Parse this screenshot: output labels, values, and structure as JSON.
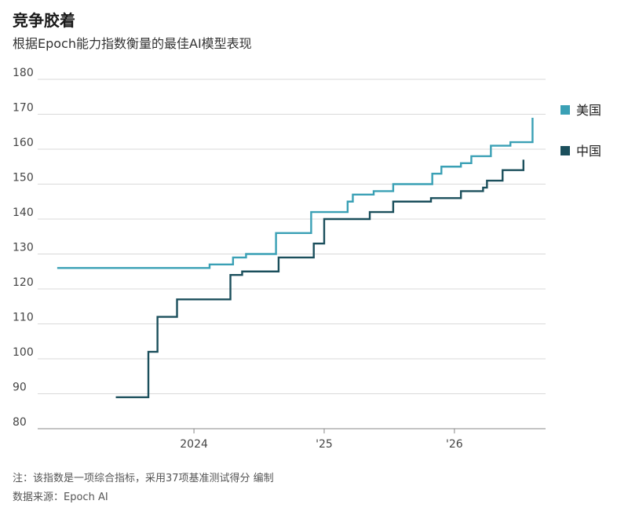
{
  "header": {
    "title": "竞争胶着",
    "subtitle": "根据Epoch能力指数衡量的最佳AI模型表现"
  },
  "footer": {
    "note": "注：该指数是一项综合指标，采用37项基准测试得分 编制",
    "source": "数据来源：Epoch AI"
  },
  "colors": {
    "us": "#3aa0b5",
    "china": "#1b4f5c",
    "grid": "#d9d9d9",
    "axis": "#888888",
    "text": "#444444"
  },
  "chart_data": {
    "type": "line",
    "step": true,
    "title": "竞争胶着",
    "subtitle": "根据Epoch能力指数衡量的最佳AI模型表现",
    "xlabel": "",
    "ylabel": "",
    "ylim": [
      80,
      180
    ],
    "yticks": [
      80,
      90,
      100,
      110,
      120,
      130,
      140,
      150,
      160,
      170,
      180
    ],
    "xticks": [
      {
        "value": 2024.0,
        "label": "2024"
      },
      {
        "value": 2025.0,
        "label": "'25"
      },
      {
        "value": 2026.0,
        "label": "'26"
      }
    ],
    "xlim": [
      2022.8,
      2026.7
    ],
    "grid": true,
    "legend_position": "right",
    "series": [
      {
        "name": "美国",
        "color_key": "us",
        "points": [
          [
            2022.95,
            126
          ],
          [
            2024.12,
            127
          ],
          [
            2024.3,
            129
          ],
          [
            2024.4,
            130
          ],
          [
            2024.63,
            136
          ],
          [
            2024.9,
            142
          ],
          [
            2025.18,
            145
          ],
          [
            2025.22,
            147
          ],
          [
            2025.38,
            148
          ],
          [
            2025.53,
            150
          ],
          [
            2025.83,
            153
          ],
          [
            2025.9,
            155
          ],
          [
            2026.05,
            156
          ],
          [
            2026.13,
            158
          ],
          [
            2026.28,
            161
          ],
          [
            2026.43,
            162
          ],
          [
            2026.6,
            169
          ]
        ]
      },
      {
        "name": "中国",
        "color_key": "china",
        "points": [
          [
            2023.4,
            89
          ],
          [
            2023.65,
            102
          ],
          [
            2023.72,
            112
          ],
          [
            2023.87,
            117
          ],
          [
            2024.28,
            124
          ],
          [
            2024.37,
            125
          ],
          [
            2024.65,
            129
          ],
          [
            2024.92,
            133
          ],
          [
            2025.0,
            140
          ],
          [
            2025.35,
            142
          ],
          [
            2025.53,
            145
          ],
          [
            2025.82,
            146
          ],
          [
            2026.05,
            148
          ],
          [
            2026.22,
            149
          ],
          [
            2026.25,
            151
          ],
          [
            2026.37,
            154
          ],
          [
            2026.53,
            157
          ]
        ]
      }
    ]
  }
}
